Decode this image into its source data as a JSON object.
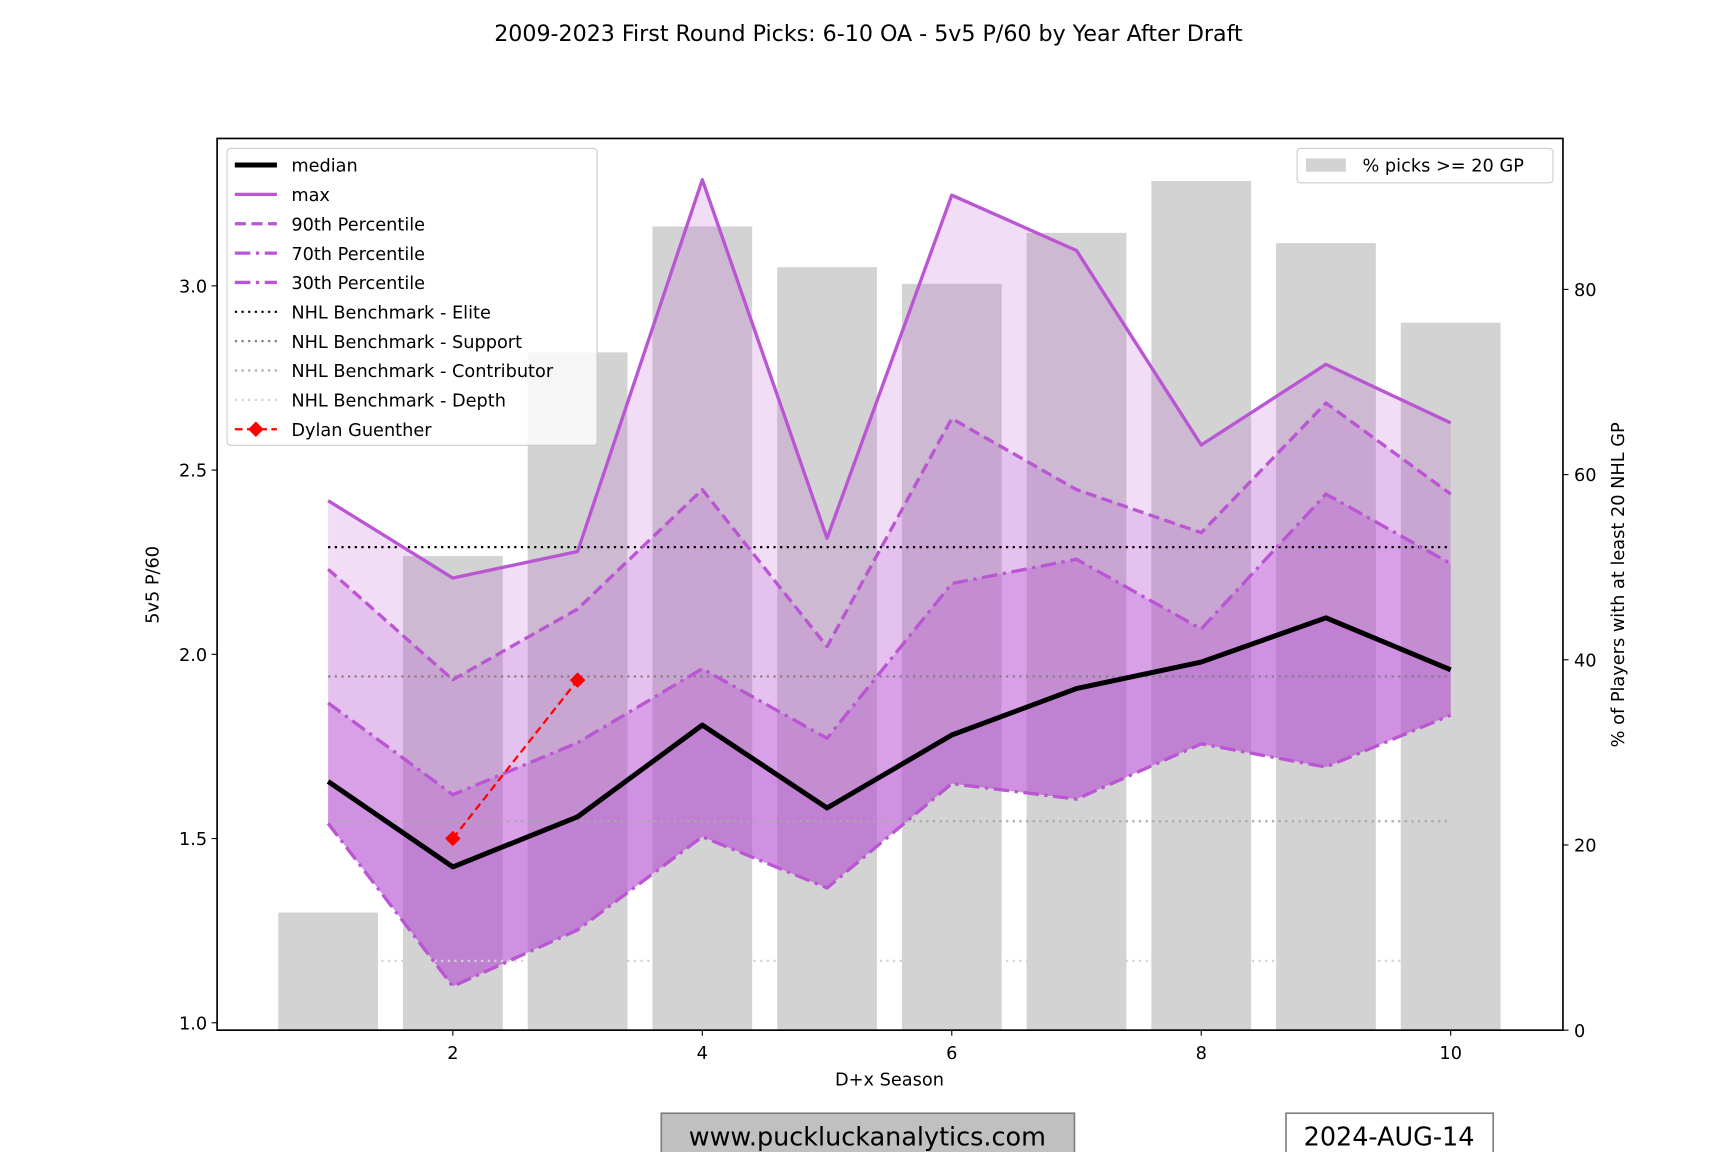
{
  "chart_data": {
    "type": "line",
    "title": "2009-2023 First Round Picks: 6-10 OA - 5v5 P/60 by Year After Draft",
    "xlabel": "D+x Season",
    "ylabel": "5v5 P/60",
    "ylabel_right": "% of Players with at least 20 NHL GP",
    "xlim": [
      0.11,
      10.9
    ],
    "ylim": [
      0.98,
      3.4
    ],
    "ylim_right": [
      0,
      96.3
    ],
    "xticks": [
      2,
      4,
      6,
      8,
      10
    ],
    "yticks": [
      "1.0",
      "1.5",
      "2.0",
      "2.5",
      "3.0"
    ],
    "yticks_right": [
      0,
      20,
      40,
      60,
      80
    ],
    "grid": false,
    "x": [
      1,
      2,
      3,
      4,
      5,
      6,
      7,
      8,
      9,
      10
    ],
    "bars": {
      "name": "% picks >= 20 GP",
      "color": "#d3d3d3",
      "values": [
        12.7,
        51.2,
        73.2,
        86.8,
        82.4,
        80.6,
        86.1,
        91.7,
        85.0,
        76.4
      ]
    },
    "series": [
      {
        "name": "median",
        "color": "#000000",
        "style": "solid",
        "values": [
          1.655,
          1.423,
          1.559,
          1.808,
          1.583,
          1.781,
          1.907,
          1.979,
          2.099,
          1.958
        ]
      },
      {
        "name": "max",
        "color": "#ba55d3",
        "style": "solid",
        "values": [
          2.417,
          2.207,
          2.279,
          3.288,
          2.315,
          3.246,
          3.096,
          2.568,
          2.787,
          2.628
        ]
      },
      {
        "name": "90th Percentile",
        "color": "#ba55d3",
        "style": "dashed",
        "values": [
          2.231,
          1.931,
          2.123,
          2.447,
          2.021,
          2.64,
          2.447,
          2.33,
          2.682,
          2.435
        ]
      },
      {
        "name": "70th Percentile",
        "color": "#ba55d3",
        "style": "dashdot",
        "values": [
          1.868,
          1.619,
          1.76,
          1.961,
          1.772,
          2.192,
          2.258,
          2.069,
          2.435,
          2.246
        ]
      },
      {
        "name": "30th Percentile",
        "color": "#ba55d3",
        "style": "dashdot",
        "values": [
          1.541,
          1.099,
          1.252,
          1.505,
          1.366,
          1.649,
          1.607,
          1.757,
          1.694,
          1.835
        ]
      }
    ],
    "benchmarks": [
      {
        "name": "NHL Benchmark - Elite",
        "color": "#000000",
        "value": 2.291
      },
      {
        "name": "NHL Benchmark - Support",
        "color": "#808080",
        "value": 1.94
      },
      {
        "name": "NHL Benchmark - Contributor",
        "color": "#a9a9a9",
        "value": 1.547
      },
      {
        "name": "NHL Benchmark - Depth",
        "color": "#d3d3d3",
        "value": 1.168
      }
    ],
    "player": {
      "name": "Dylan Guenther",
      "color": "#ff0000",
      "x": [
        2,
        3
      ],
      "values": [
        1.5,
        1.93
      ]
    },
    "legend_left": "upper-left",
    "legend_right": "upper-right"
  },
  "footer": {
    "website": "www.puckluckanalytics.com",
    "date": "2024-AUG-14"
  }
}
